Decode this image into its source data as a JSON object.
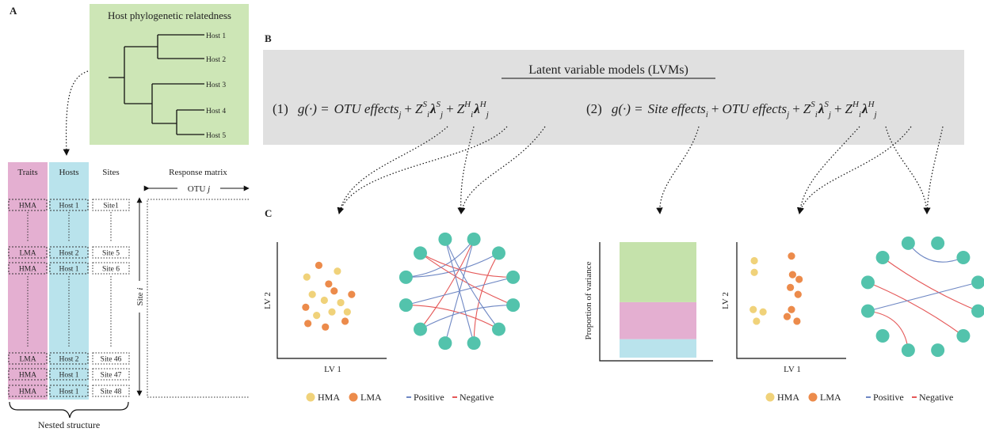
{
  "panels": {
    "a": "A",
    "b": "B",
    "c": "C"
  },
  "phylogeny": {
    "title": "Host phylogenetic relatedness",
    "tips": [
      "Host 1",
      "Host 2",
      "Host 3",
      "Host 4",
      "Host 5"
    ],
    "box_color": "#cde6b6"
  },
  "nested": {
    "headers": {
      "traits": "Traits",
      "hosts": "Hosts",
      "sites": "Sites",
      "response": "Response matrix"
    },
    "otu_label": "OTU",
    "otu_index": "j",
    "site_label": "Site",
    "site_index": "i",
    "rows": [
      {
        "trait": "HMA",
        "host": "Host 1",
        "site": "Site1"
      },
      {
        "trait": "LMA",
        "host": "Host 2",
        "site": "Site 5"
      },
      {
        "trait": "HMA",
        "host": "Host 1",
        "site": "Site 6"
      },
      {
        "trait": "LMA",
        "host": "Host 2",
        "site": "Site 46"
      },
      {
        "trait": "HMA",
        "host": "Host 1",
        "site": "Site 47"
      },
      {
        "trait": "HMA",
        "host": "Host 1",
        "site": "Site 48"
      }
    ],
    "caption": "Nested structure",
    "traits_color": "#e4afd1",
    "hosts_color": "#b9e3ec"
  },
  "lvm": {
    "title": "Latent variable models (LVMs)",
    "box_color": "#e0e0e0",
    "eq1": {
      "num": "(1)",
      "lhs": "g(·) =",
      "t1": "OTU effects",
      "s1": "j"
    },
    "eq2": {
      "num": "(2)",
      "lhs": "g(·) =",
      "t0": "Site effects",
      "s0": "i",
      "t1": "OTU effects",
      "s1": "j"
    },
    "plus": "+",
    "z": "Z",
    "lam": "λ",
    "sup_s": "S",
    "sup_h": "H",
    "sub_i": "i",
    "sub_j": "j"
  },
  "ordination": {
    "xlabel": "LV 1",
    "ylabel": "LV 2",
    "hma_color": "#f0d27a",
    "lma_color": "#ec8b4b",
    "model1": {
      "hma": [
        [
          0.27,
          0.7
        ],
        [
          0.55,
          0.75
        ],
        [
          0.32,
          0.55
        ],
        [
          0.43,
          0.5
        ],
        [
          0.58,
          0.48
        ],
        [
          0.36,
          0.37
        ],
        [
          0.5,
          0.4
        ],
        [
          0.64,
          0.4
        ]
      ],
      "lma": [
        [
          0.38,
          0.8
        ],
        [
          0.47,
          0.64
        ],
        [
          0.26,
          0.44
        ],
        [
          0.52,
          0.58
        ],
        [
          0.28,
          0.3
        ],
        [
          0.44,
          0.27
        ],
        [
          0.68,
          0.55
        ],
        [
          0.62,
          0.32
        ]
      ]
    },
    "model2": {
      "hma": [
        [
          0.16,
          0.84
        ],
        [
          0.16,
          0.74
        ],
        [
          0.15,
          0.42
        ],
        [
          0.24,
          0.4
        ],
        [
          0.18,
          0.32
        ]
      ],
      "lma": [
        [
          0.5,
          0.88
        ],
        [
          0.51,
          0.72
        ],
        [
          0.57,
          0.68
        ],
        [
          0.49,
          0.61
        ],
        [
          0.56,
          0.55
        ],
        [
          0.5,
          0.42
        ],
        [
          0.46,
          0.36
        ],
        [
          0.55,
          0.32
        ]
      ]
    }
  },
  "variance": {
    "ylabel": "Proportion of variance",
    "segments": [
      {
        "value": 0.16,
        "color": "#b9e3ec"
      },
      {
        "value": 0.32,
        "color": "#e4afd1"
      },
      {
        "value": 0.52,
        "color": "#c5e2ab"
      }
    ]
  },
  "network": {
    "node_color": "#53c3ac",
    "positive_color": "#6f88c4",
    "negative_color": "#e55858",
    "net1": {
      "edges": [
        {
          "a": 0,
          "b": 6,
          "s": "pos"
        },
        {
          "a": 0,
          "b": 7,
          "s": "neg"
        },
        {
          "a": 1,
          "b": 5,
          "s": "neg"
        },
        {
          "a": 1,
          "b": 9,
          "s": "pos"
        },
        {
          "a": 2,
          "b": 8,
          "s": "pos"
        },
        {
          "a": 3,
          "b": 10,
          "s": "neg"
        },
        {
          "a": 4,
          "b": 11,
          "s": "pos"
        },
        {
          "a": 4,
          "b": 8,
          "s": "neg"
        },
        {
          "a": 0,
          "b": 9,
          "s": "pos"
        },
        {
          "a": 2,
          "b": 10,
          "s": "neg"
        },
        {
          "a": 3,
          "b": 7,
          "s": "pos"
        },
        {
          "a": 5,
          "b": 11,
          "s": "pos"
        }
      ]
    },
    "net2": {
      "edges": [
        {
          "a": 11,
          "b": 1,
          "s": "pos"
        },
        {
          "a": 10,
          "b": 3,
          "s": "neg"
        },
        {
          "a": 9,
          "b": 4,
          "s": "neg"
        },
        {
          "a": 8,
          "b": 2,
          "s": "pos"
        },
        {
          "a": 8,
          "b": 6,
          "s": "neg"
        }
      ]
    }
  },
  "legend": {
    "hma": "HMA",
    "lma": "LMA",
    "positive": "Positive",
    "negative": "Negative"
  }
}
